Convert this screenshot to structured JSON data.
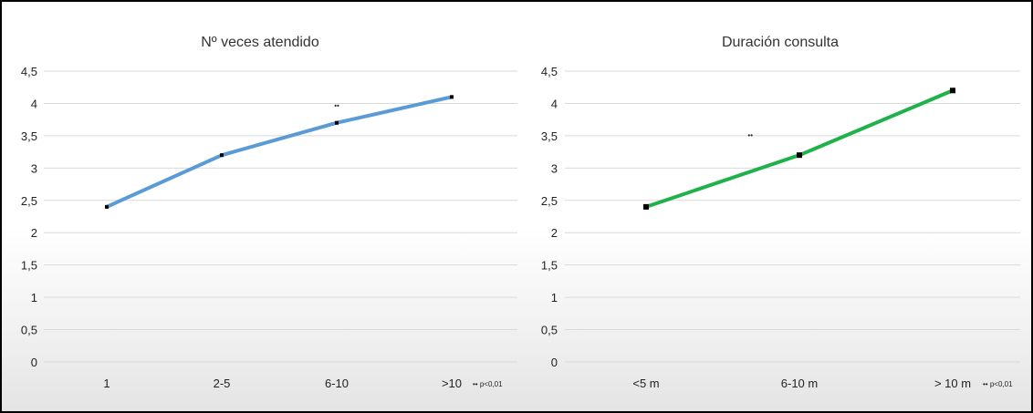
{
  "chart_data": [
    {
      "type": "line",
      "title": "Nº veces atendido",
      "xlabel": "",
      "ylabel": "",
      "categories": [
        "1",
        "2-5",
        "6-10",
        ">10"
      ],
      "series": [
        {
          "values": [
            2.4,
            3.2,
            3.7,
            4.1
          ],
          "color": "#5b9bd5"
        }
      ],
      "ylim": [
        0,
        4.5
      ],
      "yticks": [
        "0",
        "0,5",
        "1",
        "1,5",
        "2",
        "2,5",
        "3",
        "3,5",
        "4",
        "4,5"
      ],
      "grid": true,
      "legend": "none",
      "annotations": [
        {
          "text": "••",
          "x_index": 2,
          "y": 3.97
        }
      ],
      "footnote": "•• p<0,01"
    },
    {
      "type": "line",
      "title": "Duración consulta",
      "xlabel": "",
      "ylabel": "",
      "categories": [
        "<5 m",
        "6-10 m",
        "> 10 m"
      ],
      "series": [
        {
          "values": [
            2.4,
            3.2,
            4.2
          ],
          "color": "#1fb24a"
        }
      ],
      "ylim": [
        0,
        4.5
      ],
      "yticks": [
        "0",
        "0,5",
        "1",
        "1,5",
        "2",
        "2,5",
        "3",
        "3,5",
        "4",
        "4,5"
      ],
      "grid": true,
      "legend": "none",
      "annotations": [
        {
          "text": "••",
          "x_index": 0.68,
          "y": 3.51
        }
      ],
      "footnote": "•• p<0,01"
    }
  ]
}
